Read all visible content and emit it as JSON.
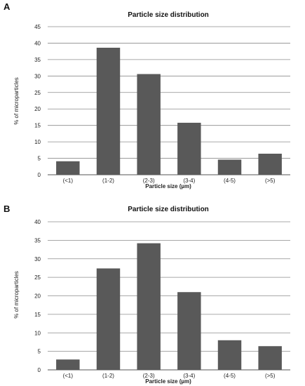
{
  "colors": {
    "bar": "#595959",
    "grid": "#8c8c8c",
    "axis": "#555555"
  },
  "chart_data": [
    {
      "type": "bar",
      "panel": "A",
      "title": "Particle size distribution",
      "xlabel": "Particle size (µm)",
      "ylabel": "% of microparticles",
      "categories": [
        "(<1)",
        "(1-2)",
        "(2-3)",
        "(3-4)",
        "(4-5)",
        "(>5)"
      ],
      "values": [
        4.1,
        38.6,
        30.6,
        15.8,
        4.6,
        6.4
      ],
      "ylim": [
        0,
        45
      ],
      "yticks": [
        0,
        5,
        10,
        15,
        20,
        25,
        30,
        35,
        40,
        45
      ],
      "grid": true
    },
    {
      "type": "bar",
      "panel": "B",
      "title": "Particle size distribution",
      "xlabel": "Particle size (µm)",
      "ylabel": "% of microparticles",
      "categories": [
        "(<1)",
        "(1-2)",
        "(2-3)",
        "(3-4)",
        "(4-5)",
        "(>5)"
      ],
      "values": [
        2.8,
        27.4,
        34.2,
        21.0,
        8.0,
        6.4
      ],
      "ylim": [
        0,
        40
      ],
      "yticks": [
        0,
        5,
        10,
        15,
        20,
        25,
        30,
        35,
        40
      ],
      "grid": true
    }
  ]
}
